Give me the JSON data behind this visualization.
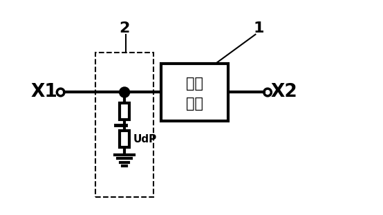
{
  "background": "#ffffff",
  "line_color": "#000000",
  "box_label_line1": "阻断",
  "box_label_line2": "单元",
  "label_1": "1",
  "label_2": "2",
  "x1_label": "X1",
  "x2_label": "X2",
  "udp_label": "UdP",
  "fig_width": 5.54,
  "fig_height": 3.11,
  "dpi": 100
}
